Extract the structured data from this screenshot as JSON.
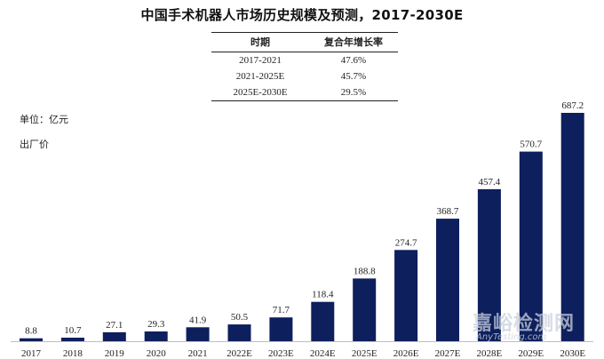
{
  "chart_data": {
    "type": "bar",
    "title": "中国手术机器人市场历史规模及预测，2017-2030E",
    "unit_label": "单位：亿元",
    "price_label": "出厂价",
    "categories": [
      "2017",
      "2018",
      "2019",
      "2020",
      "2021",
      "2022E",
      "2023E",
      "2024E",
      "2025E",
      "2026E",
      "2027E",
      "2028E",
      "2029E",
      "2030E"
    ],
    "values": [
      8.8,
      10.7,
      27.1,
      29.3,
      41.9,
      50.5,
      71.7,
      118.4,
      188.8,
      274.7,
      368.7,
      457.4,
      570.7,
      687.2
    ],
    "value_labels": [
      "8.8",
      "10.7",
      "27.1",
      "29.3",
      "41.9",
      "50.5",
      "71.7",
      "118.4",
      "188.8",
      "274.7",
      "368.7",
      "457.4",
      "570.7",
      "687.2"
    ],
    "ylim": [
      0,
      687.2
    ],
    "grid": false,
    "bar_color": "#0d1f5c",
    "cagr_table": {
      "headers": [
        "时期",
        "复合年增长率"
      ],
      "rows": [
        {
          "period": "2017-2021",
          "rate": "47.6%"
        },
        {
          "period": "2021-2025E",
          "rate": "45.7%"
        },
        {
          "period": "2025E-2030E",
          "rate": "29.5%"
        }
      ]
    }
  },
  "watermark": {
    "text": "嘉峪检测网",
    "sub": "AnyTesting.com"
  }
}
